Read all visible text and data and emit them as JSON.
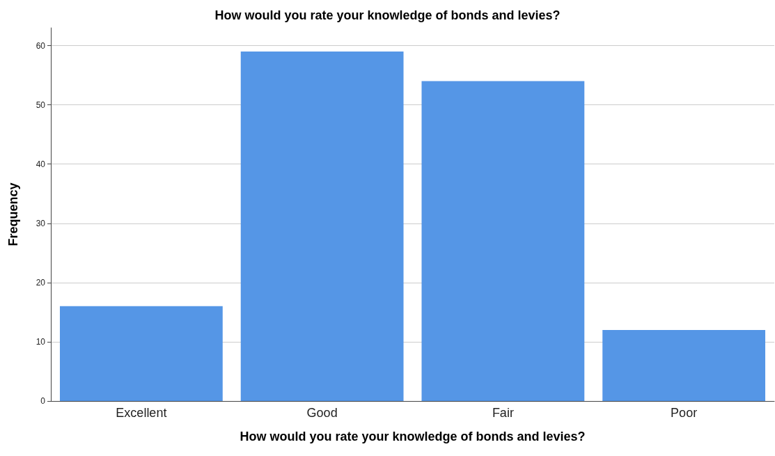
{
  "chart_data": {
    "type": "bar",
    "title": "How would you rate your knowledge of bonds and levies?",
    "xlabel": "How would you rate your knowledge of bonds and levies?",
    "ylabel": "Frequency",
    "categories": [
      "Excellent",
      "Good",
      "Fair",
      "Poor"
    ],
    "values": [
      16,
      59,
      54,
      12
    ],
    "color": "#5596e6",
    "ylim": [
      0,
      63
    ],
    "yticks": [
      0,
      10,
      20,
      30,
      40,
      50,
      60
    ],
    "grid": "y"
  }
}
